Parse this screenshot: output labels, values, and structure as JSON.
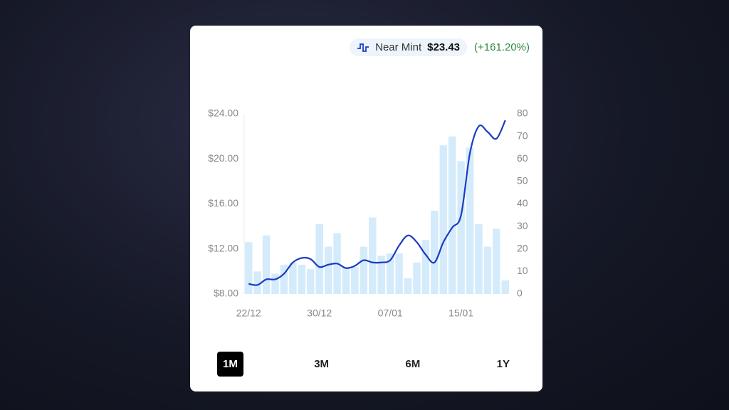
{
  "header": {
    "condition": "Near Mint",
    "price": "$23.43",
    "change": "(+161.20%)"
  },
  "chart_data": {
    "type": "bar-line",
    "categories": [
      "22/12",
      null,
      null,
      null,
      null,
      null,
      null,
      null,
      "30/12",
      null,
      null,
      null,
      null,
      null,
      null,
      null,
      "07/01",
      null,
      null,
      null,
      null,
      null,
      null,
      null,
      "15/01",
      null,
      null,
      null,
      null,
      null
    ],
    "series": [
      {
        "name": "Volume",
        "type": "bar",
        "axis": "y2",
        "color": "#d4ebfb",
        "values": [
          23,
          10,
          26,
          9,
          13,
          14,
          13,
          11,
          31,
          21,
          27,
          12,
          12,
          21,
          34,
          17,
          18,
          18,
          7,
          14,
          24,
          37,
          66,
          70,
          59,
          65,
          31,
          21,
          29,
          6
        ]
      },
      {
        "name": "Price",
        "type": "line",
        "axis": "y",
        "color": "#1b3cc2",
        "values": [
          8.9,
          8.8,
          9.3,
          9.3,
          9.8,
          10.8,
          11.2,
          11.1,
          10.4,
          10.6,
          10.7,
          10.3,
          10.5,
          11.0,
          10.8,
          10.8,
          11.0,
          12.3,
          13.2,
          12.6,
          11.5,
          10.8,
          12.6,
          13.9,
          15.0,
          20.5,
          22.9,
          22.4,
          21.8,
          23.43
        ]
      }
    ],
    "ylim": [
      8,
      24
    ],
    "yticks": [
      {
        "value": 8,
        "label": "$8.00"
      },
      {
        "value": 12,
        "label": "$12.00"
      },
      {
        "value": 16,
        "label": "$16.00"
      },
      {
        "value": 20,
        "label": "$20.00"
      },
      {
        "value": 24,
        "label": "$24.00"
      }
    ],
    "y2lim": [
      0,
      80
    ],
    "y2ticks": [
      0,
      10,
      20,
      30,
      40,
      50,
      60,
      70,
      80
    ]
  },
  "tabs": [
    "1M",
    "3M",
    "6M",
    "1Y"
  ]
}
